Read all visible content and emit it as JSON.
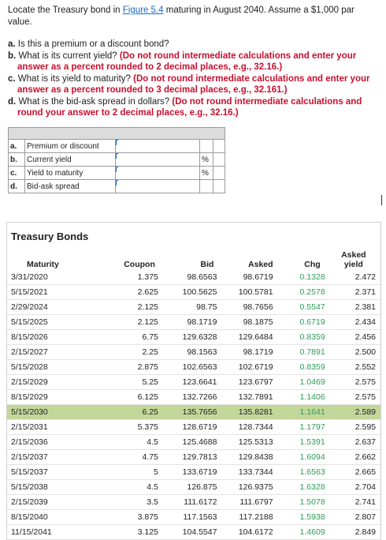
{
  "question": {
    "intro_pre": "Locate the Treasury bond in ",
    "intro_link": "Figure 5.4",
    "intro_post": " maturing in August 2040. Assume a $1,000 par value.",
    "items": [
      {
        "label": "a.",
        "text": "Is this a premium or a discount bond?",
        "note": ""
      },
      {
        "label": "b.",
        "text": "What is its current yield?",
        "note": "(Do not round intermediate calculations and enter your answer as a percent rounded to 2 decimal places, e.g., 32.16.)"
      },
      {
        "label": "c.",
        "text": "What is its yield to maturity?",
        "note": "(Do not round intermediate calculations and enter your answer as a percent rounded to 3 decimal places, e.g., 32.161.)"
      },
      {
        "label": "d.",
        "text": "What is the bid-ask spread in dollars?",
        "note": "(Do not round intermediate calculations and round your answer to 2 decimal places, e.g., 32.16.)"
      }
    ]
  },
  "answers": [
    {
      "label": "a.",
      "desc": "Premium or discount",
      "value": "",
      "unit": ""
    },
    {
      "label": "b.",
      "desc": "Current yield",
      "value": "",
      "unit": "%"
    },
    {
      "label": "c.",
      "desc": "Yield to maturity",
      "value": "",
      "unit": "%"
    },
    {
      "label": "d.",
      "desc": "Bid-ask spread",
      "value": "",
      "unit": ""
    }
  ],
  "bonds": {
    "title": "Treasury Bonds",
    "headers": {
      "maturity": "Maturity",
      "coupon": "Coupon",
      "bid": "Bid",
      "asked": "Asked",
      "chg": "Chg",
      "yield_top": "Asked",
      "yield_bottom": "yield"
    },
    "highlight_color": "#c4d79b",
    "chg_color": "#2e9a57",
    "rows": [
      {
        "maturity": "3/31/2020",
        "coupon": "1.375",
        "bid": "98.6563",
        "asked": "98.6719",
        "chg": "0.1328",
        "yield": "2.472",
        "hl": false
      },
      {
        "maturity": "5/15/2021",
        "coupon": "2.625",
        "bid": "100.5625",
        "asked": "100.5781",
        "chg": "0.2578",
        "yield": "2.371",
        "hl": false
      },
      {
        "maturity": "2/29/2024",
        "coupon": "2.125",
        "bid": "98.75",
        "asked": "98.7656",
        "chg": "0.5547",
        "yield": "2.381",
        "hl": false
      },
      {
        "maturity": "5/15/2025",
        "coupon": "2.125",
        "bid": "98.1719",
        "asked": "98.1875",
        "chg": "0.6719",
        "yield": "2.434",
        "hl": false
      },
      {
        "maturity": "8/15/2026",
        "coupon": "6.75",
        "bid": "129.6328",
        "asked": "129.6484",
        "chg": "0.8359",
        "yield": "2.456",
        "hl": false
      },
      {
        "maturity": "2/15/2027",
        "coupon": "2.25",
        "bid": "98.1563",
        "asked": "98.1719",
        "chg": "0.7891",
        "yield": "2.500",
        "hl": false
      },
      {
        "maturity": "5/15/2028",
        "coupon": "2.875",
        "bid": "102.6563",
        "asked": "102.6719",
        "chg": "0.8359",
        "yield": "2.552",
        "hl": false
      },
      {
        "maturity": "2/15/2029",
        "coupon": "5.25",
        "bid": "123.6641",
        "asked": "123.6797",
        "chg": "1.0469",
        "yield": "2.575",
        "hl": false
      },
      {
        "maturity": "8/15/2029",
        "coupon": "6.125",
        "bid": "132.7266",
        "asked": "132.7891",
        "chg": "1.1406",
        "yield": "2.575",
        "hl": false
      },
      {
        "maturity": "5/15/2030",
        "coupon": "6.25",
        "bid": "135.7656",
        "asked": "135.8281",
        "chg": "1.1641",
        "yield": "2.589",
        "hl": true
      },
      {
        "maturity": "2/15/2031",
        "coupon": "5.375",
        "bid": "128.6719",
        "asked": "128.7344",
        "chg": "1.1797",
        "yield": "2.595",
        "hl": false
      },
      {
        "maturity": "2/15/2036",
        "coupon": "4.5",
        "bid": "125.4688",
        "asked": "125.5313",
        "chg": "1.5391",
        "yield": "2.637",
        "hl": false
      },
      {
        "maturity": "2/15/2037",
        "coupon": "4.75",
        "bid": "129.7813",
        "asked": "129.8438",
        "chg": "1.6094",
        "yield": "2.662",
        "hl": false
      },
      {
        "maturity": "5/15/2037",
        "coupon": "5",
        "bid": "133.6719",
        "asked": "133.7344",
        "chg": "1.6563",
        "yield": "2.665",
        "hl": false
      },
      {
        "maturity": "5/15/2038",
        "coupon": "4.5",
        "bid": "126.875",
        "asked": "126.9375",
        "chg": "1.6328",
        "yield": "2.704",
        "hl": false
      },
      {
        "maturity": "2/15/2039",
        "coupon": "3.5",
        "bid": "111.6172",
        "asked": "111.6797",
        "chg": "1.5078",
        "yield": "2.741",
        "hl": false
      },
      {
        "maturity": "8/15/2040",
        "coupon": "3.875",
        "bid": "117.1563",
        "asked": "117.2188",
        "chg": "1.5938",
        "yield": "2.807",
        "hl": false
      },
      {
        "maturity": "11/15/2041",
        "coupon": "3.125",
        "bid": "104.5547",
        "asked": "104.6172",
        "chg": "1.4609",
        "yield": "2.849",
        "hl": false
      }
    ]
  }
}
